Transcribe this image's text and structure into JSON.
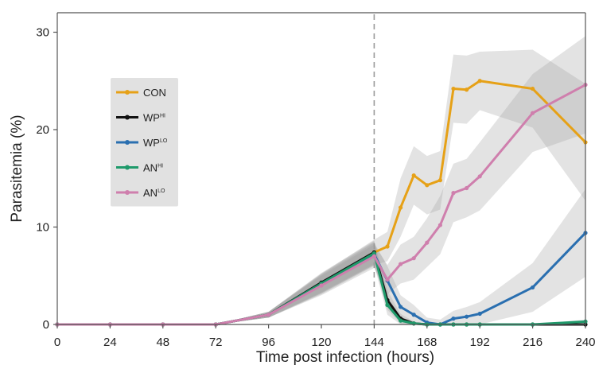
{
  "chart_data": {
    "type": "line",
    "title": "",
    "xlabel": "Time post infection (hours)",
    "ylabel": "Parasitemia (%)",
    "xlim": [
      0,
      240
    ],
    "ylim": [
      0,
      32
    ],
    "xticks": [
      0,
      24,
      48,
      72,
      96,
      120,
      144,
      168,
      192,
      216,
      240
    ],
    "yticks": [
      0,
      10,
      20,
      30
    ],
    "treatment_start_x": 144,
    "grid": false,
    "legend_position": "left",
    "series": [
      {
        "name": "CON",
        "label_base": "CON",
        "label_sup": "",
        "color": "#e6a117",
        "x": [
          0,
          24,
          48,
          72,
          96,
          120,
          144,
          150,
          156,
          162,
          168,
          174,
          180,
          186,
          192,
          216,
          240
        ],
        "y": [
          0,
          0,
          0,
          0,
          1,
          4.2,
          7.4,
          8,
          12,
          15.3,
          14.3,
          14.8,
          24.2,
          24.1,
          25,
          24.2,
          18.7
        ],
        "band": [
          0,
          0,
          0,
          0,
          0.3,
          1,
          1.3,
          1.5,
          3,
          3,
          3,
          3,
          3.5,
          3.5,
          3,
          4,
          6
        ]
      },
      {
        "name": "WP^HI",
        "label_base": "WP",
        "label_sup": "HI",
        "color": "#111111",
        "x": [
          0,
          24,
          48,
          72,
          96,
          120,
          144,
          150,
          156,
          162,
          168,
          174,
          180,
          186,
          192,
          216,
          240
        ],
        "y": [
          0,
          0,
          0,
          0,
          1,
          4.3,
          7.4,
          2.5,
          0.6,
          0.1,
          0,
          0,
          0,
          0,
          0,
          0,
          0
        ],
        "band": [
          0,
          0,
          0,
          0,
          0.3,
          1,
          1.2,
          1,
          0.5,
          0.2,
          0,
          0,
          0,
          0,
          0,
          0,
          0
        ]
      },
      {
        "name": "WP^LO",
        "label_base": "WP",
        "label_sup": "LO",
        "color": "#2a6fb0",
        "x": [
          0,
          24,
          48,
          72,
          96,
          120,
          144,
          150,
          156,
          162,
          168,
          174,
          180,
          186,
          192,
          216,
          240
        ],
        "y": [
          0,
          0,
          0,
          0,
          1,
          4.1,
          7.2,
          4.5,
          1.8,
          1,
          0.2,
          0,
          0.6,
          0.8,
          1.1,
          3.8,
          9.4
        ],
        "band": [
          0,
          0,
          0,
          0,
          0.3,
          1,
          1.2,
          1.5,
          1.2,
          1,
          0.5,
          0.5,
          0.8,
          1,
          1.2,
          2.5,
          4.5
        ]
      },
      {
        "name": "AN^HI",
        "label_base": "AN",
        "label_sup": "HI",
        "color": "#1f9a6b",
        "x": [
          0,
          24,
          48,
          72,
          96,
          120,
          144,
          150,
          156,
          162,
          168,
          174,
          180,
          186,
          192,
          216,
          240
        ],
        "y": [
          0,
          0,
          0,
          0,
          1,
          4.2,
          7.3,
          2,
          0.4,
          0.1,
          0,
          0,
          0,
          0,
          0,
          0,
          0.3
        ],
        "band": [
          0,
          0,
          0,
          0,
          0.3,
          1,
          1.2,
          1,
          0.4,
          0.2,
          0,
          0,
          0,
          0,
          0,
          0,
          0.2
        ]
      },
      {
        "name": "AN^LO",
        "label_base": "AN",
        "label_sup": "LO",
        "color": "#cf7fad",
        "x": [
          0,
          24,
          48,
          72,
          96,
          120,
          144,
          150,
          156,
          162,
          168,
          174,
          180,
          186,
          192,
          216,
          240
        ],
        "y": [
          0,
          0,
          0,
          0,
          1,
          4,
          7,
          4.6,
          6.2,
          6.8,
          8.4,
          10.2,
          13.5,
          14,
          15.2,
          21.7,
          24.6
        ],
        "band": [
          0,
          0,
          0,
          0,
          0.3,
          1,
          1.2,
          1.5,
          2,
          2.2,
          2.5,
          3,
          3,
          3,
          3.5,
          4,
          5
        ]
      }
    ]
  }
}
